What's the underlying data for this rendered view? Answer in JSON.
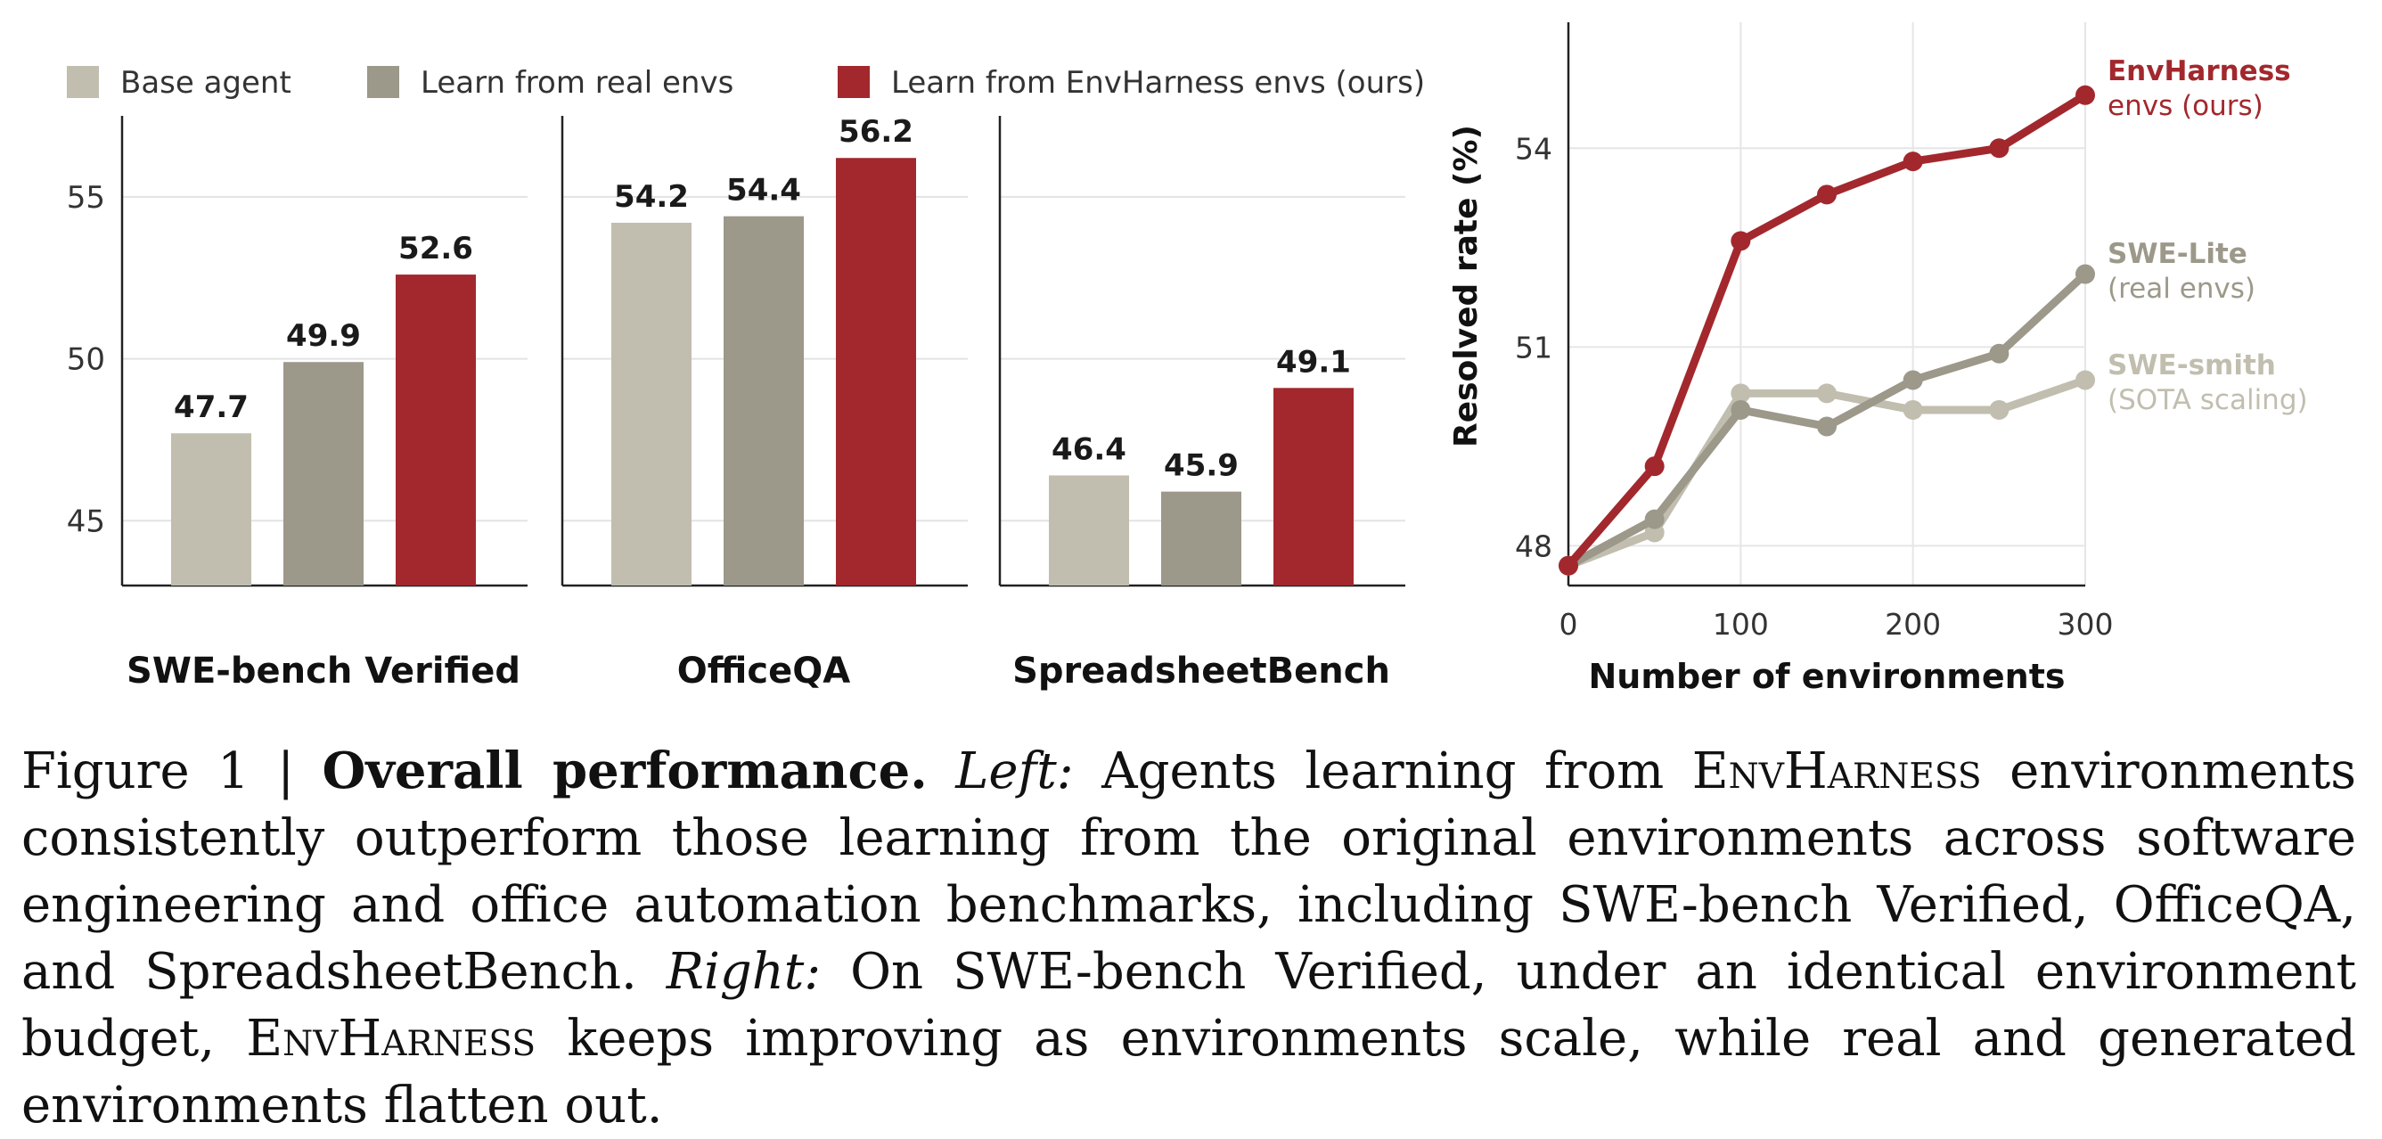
{
  "legend": [
    {
      "label": "Base agent",
      "color": "#c1beaf"
    },
    {
      "label": "Learn from real envs",
      "color": "#9c988a"
    },
    {
      "label": "Learn from EnvHarness envs (ours)",
      "color": "#a2282d"
    }
  ],
  "chart_data": [
    {
      "type": "bar",
      "title": "",
      "categories": [
        "SWE-bench Verified",
        "OfficeQA",
        "SpreadsheetBench"
      ],
      "series": [
        {
          "name": "Base agent",
          "color": "#c1beaf",
          "values": [
            47.7,
            54.2,
            46.4
          ]
        },
        {
          "name": "Learn from real envs",
          "color": "#9c988a",
          "values": [
            49.9,
            54.4,
            45.9
          ]
        },
        {
          "name": "Learn from EnvHarness envs (ours)",
          "color": "#a2282d",
          "values": [
            52.6,
            56.2,
            49.1
          ]
        }
      ],
      "value_labels": [
        [
          "47.7",
          "49.9",
          "52.6"
        ],
        [
          "54.2",
          "54.4",
          "56.2"
        ],
        [
          "46.4",
          "45.9",
          "49.1"
        ]
      ],
      "yticks": [
        45,
        50,
        55
      ],
      "ytick_labels": [
        "45",
        "50",
        "55"
      ],
      "panel_ylims": [
        [
          43,
          57.5
        ],
        [
          43,
          57.5
        ],
        [
          43,
          57.5
        ]
      ],
      "grid": true,
      "legend_position": "top"
    },
    {
      "type": "line",
      "title": "",
      "xlabel": "Number of environments",
      "ylabel": "Resolved rate (%)",
      "xlim": [
        0,
        300
      ],
      "ylim": [
        47.4,
        55.9
      ],
      "xticks": [
        0,
        100,
        200,
        300
      ],
      "xtick_labels": [
        "0",
        "100",
        "200",
        "300"
      ],
      "yticks": [
        48,
        51,
        54
      ],
      "ytick_labels": [
        "48",
        "51",
        "54"
      ],
      "grid": true,
      "x": [
        0,
        50,
        100,
        150,
        200,
        250,
        300
      ],
      "series": [
        {
          "name": "SWE-smith",
          "label_line1": "SWE-smith",
          "label_line2": "(SOTA scaling)",
          "color": "#c1beaf",
          "values": [
            47.7,
            48.2,
            50.3,
            50.3,
            50.05,
            50.05,
            50.5
          ]
        },
        {
          "name": "SWE-Lite",
          "label_line1": "SWE-Lite",
          "label_line2": "(real envs)",
          "color": "#9c988a",
          "values": [
            47.7,
            48.4,
            50.05,
            49.8,
            50.5,
            50.9,
            52.1
          ]
        },
        {
          "name": "EnvHarness envs (ours)",
          "label_line1": "EnvHarness",
          "label_line2": "envs (ours)",
          "color": "#a2282d",
          "values": [
            47.7,
            49.2,
            52.6,
            53.3,
            53.8,
            54.0,
            54.8
          ]
        }
      ]
    }
  ],
  "caption": {
    "figure_number": "Figure 1 | ",
    "bold_title": "Overall performance.",
    "left_label": "Left:",
    "text1": " Agents learning from ",
    "name1": "EnvHarness",
    "text2": " environments consistently outperform those learning from the original environments across software engineering and office automation benchmarks, including SWE-bench Verified, OfficeQA, and SpreadsheetBench. ",
    "right_label": "Right:",
    "text3": " On SWE-bench Verified, under an identical environment budget, ",
    "name2": "EnvHarness",
    "text4": " keeps improving as environments scale, while real and generated environments flatten out."
  }
}
